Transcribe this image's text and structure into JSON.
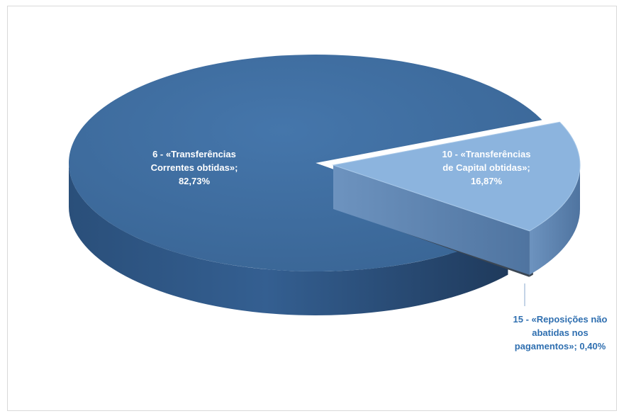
{
  "chart_data": {
    "type": "pie",
    "title": "",
    "legend": "none",
    "slices": [
      {
        "label_lines": [
          "6 - «Transferências",
          "Correntes obtidas»;",
          "82,73%"
        ],
        "category": "6 - «Transferências Correntes obtidas»",
        "value": 82.73
      },
      {
        "label_lines": [
          "10 - «Transferências",
          "de Capital obtidas»;",
          "16,87%"
        ],
        "category": "10 - «Transferências de Capital obtidas»",
        "value": 16.87
      },
      {
        "label_lines": [
          "15 - «Reposições não",
          "abatidas nos",
          "pagamentos»; 0,40%"
        ],
        "category": "15 - «Reposições não abatidas nos pagamentos»",
        "value": 0.4
      }
    ]
  },
  "colors": {
    "slice_main": "#3e6b9c",
    "slice_main_side": "#2d5280",
    "slice_capital": "#8cb4de",
    "slice_capital_side": "#7299c4",
    "slice_small": "#4d5b6a",
    "slice_small_side": "#3b4653",
    "label_dark": "#ffffff",
    "label_outside": "#2f6fb0"
  }
}
